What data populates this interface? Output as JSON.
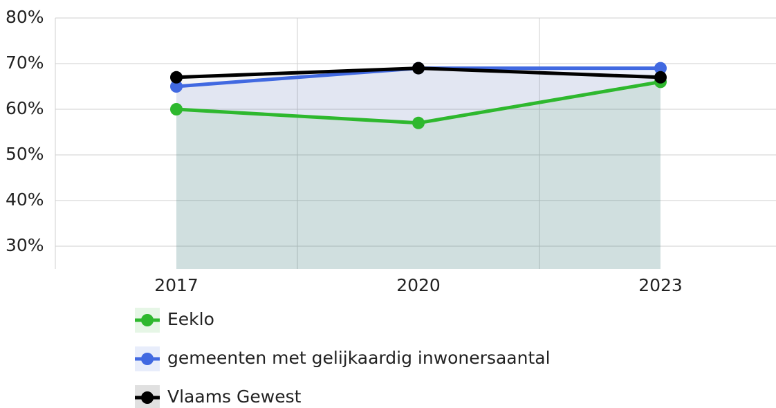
{
  "chart_data": {
    "type": "line",
    "categories": [
      "2017",
      "2020",
      "2023"
    ],
    "series": [
      {
        "name": "Eeklo",
        "color": "#2eb82e",
        "values": [
          60,
          57,
          66
        ]
      },
      {
        "name": "gemeenten met gelijkaardig inwonersaantal",
        "color": "#4169e1",
        "values": [
          65,
          69,
          69
        ]
      },
      {
        "name": "Vlaams Gewest",
        "color": "#000000",
        "values": [
          67,
          69,
          67
        ]
      }
    ],
    "ylim": [
      25,
      80
    ],
    "yticks": [
      {
        "value": 30,
        "label": "30%"
      },
      {
        "value": 40,
        "label": "40%"
      },
      {
        "value": 50,
        "label": "50%"
      },
      {
        "value": 60,
        "label": "60%"
      },
      {
        "value": 70,
        "label": "70%"
      },
      {
        "value": 80,
        "label": "80%"
      }
    ],
    "grid": true
  }
}
